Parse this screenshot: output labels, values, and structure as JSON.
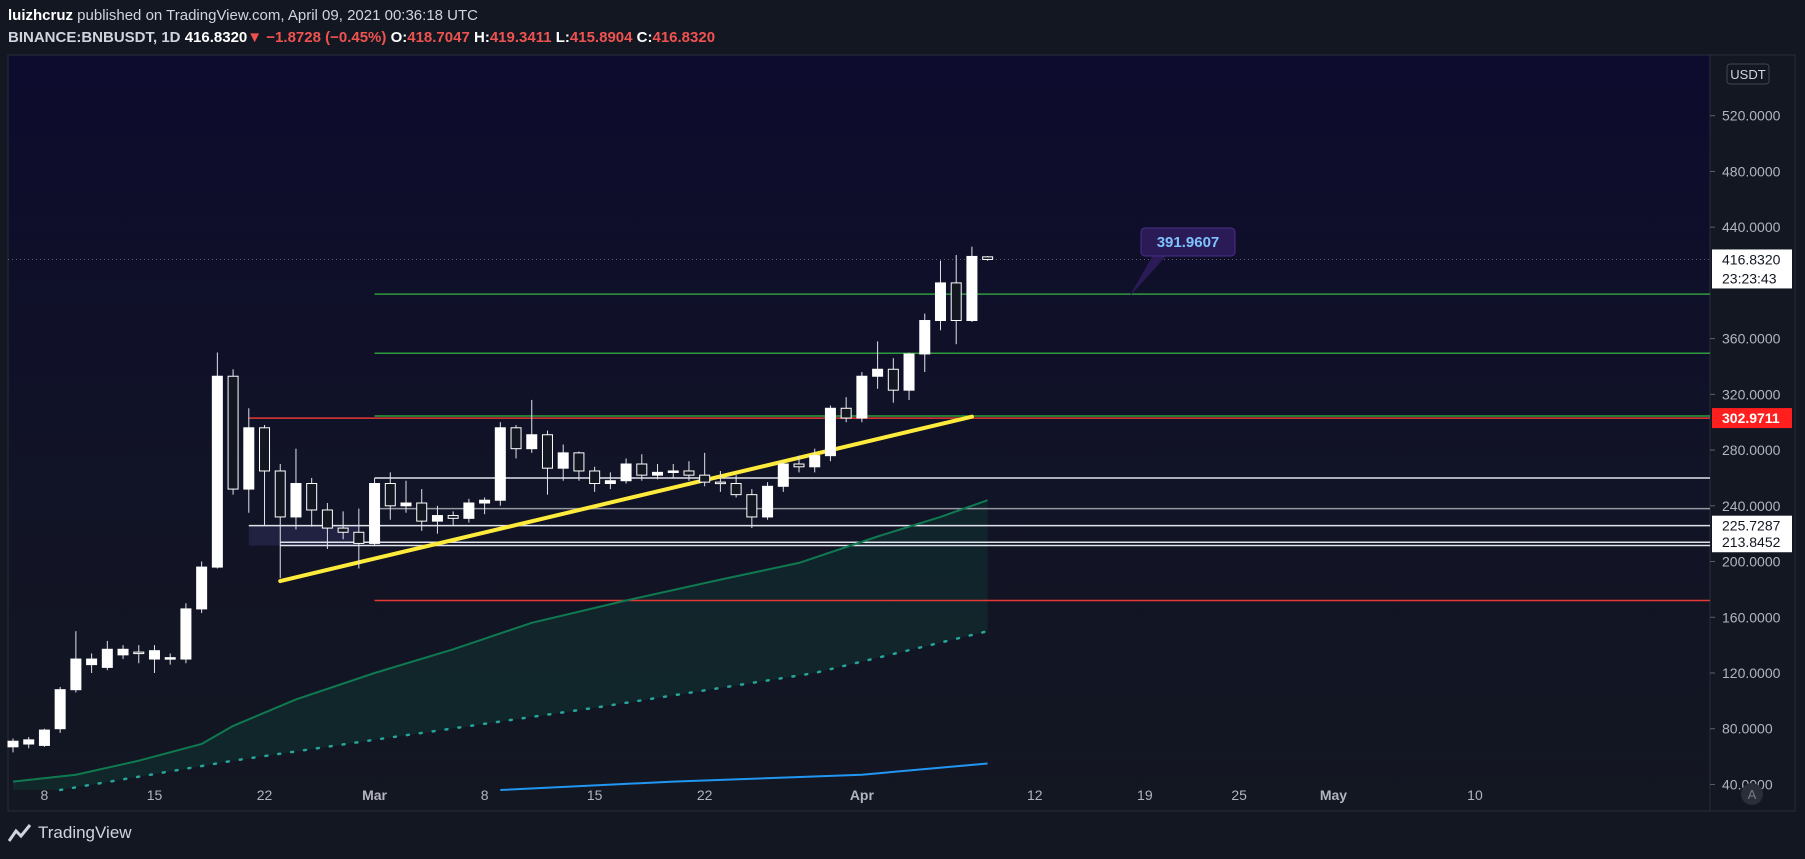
{
  "header": {
    "author": "luizhcruz",
    "published_text": " published on TradingView.com, April 09, 2021 00:36:18 UTC",
    "symbol": "BINANCE:BNBUSDT, 1D",
    "last": "416.8320",
    "arrow": "▼",
    "change": "−1.8728 (−0.45%)",
    "o_label": "O:",
    "o": "418.7047",
    "h_label": "H:",
    "h": "419.3411",
    "l_label": "L:",
    "l": "415.8904",
    "c_label": "C:",
    "c": "416.8320"
  },
  "footer": {
    "brand": "TradingView"
  },
  "colors": {
    "background": "#131722",
    "pane_top": "#0d0b2e",
    "candle": "#ffffff",
    "trendline": "#ffeb3b",
    "ema_green": "#0f7a50",
    "sma_blue": "#2196f3",
    "dot_green": "#26a69a",
    "level_green": "#2e9c3d",
    "level_red": "#e53935",
    "level_white": "#e0e3eb"
  },
  "chart_data": {
    "type": "candlestick",
    "symbol": "BINANCE:BNBUSDT",
    "timeframe": "1D",
    "currency": "USDT",
    "ylim": [
      36,
      560
    ],
    "y_ticks": [
      "520.0000",
      "480.0000",
      "440.0000",
      "360.0000",
      "320.0000",
      "280.0000",
      "240.0000",
      "200.0000",
      "160.0000",
      "120.0000",
      "80.0000",
      "40.0000"
    ],
    "y_tick_values": [
      520,
      480,
      440,
      360,
      320,
      280,
      240,
      200,
      160,
      120,
      80,
      40
    ],
    "x_ticks": [
      {
        "label": "8",
        "date": "2021-02-08"
      },
      {
        "label": "15",
        "date": "2021-02-15"
      },
      {
        "label": "22",
        "date": "2021-02-22"
      },
      {
        "label": "Mar",
        "date": "2021-03-01"
      },
      {
        "label": "8",
        "date": "2021-03-08"
      },
      {
        "label": "15",
        "date": "2021-03-15"
      },
      {
        "label": "22",
        "date": "2021-03-22"
      },
      {
        "label": "Apr",
        "date": "2021-04-01"
      },
      {
        "label": "12",
        "date": "2021-04-12"
      },
      {
        "label": "19",
        "date": "2021-04-19"
      },
      {
        "label": "25",
        "date": "2021-04-25"
      },
      {
        "label": "May",
        "date": "2021-05-01"
      },
      {
        "label": "10",
        "date": "2021-05-10"
      }
    ],
    "candles": [
      {
        "date": "2021-02-06",
        "o": 67,
        "h": 73,
        "l": 63,
        "c": 71
      },
      {
        "date": "2021-02-07",
        "o": 69,
        "h": 74,
        "l": 66,
        "c": 72
      },
      {
        "date": "2021-02-08",
        "o": 68,
        "h": 80,
        "l": 67,
        "c": 79
      },
      {
        "date": "2021-02-09",
        "o": 80,
        "h": 110,
        "l": 77,
        "c": 108
      },
      {
        "date": "2021-02-10",
        "o": 108,
        "h": 150,
        "l": 106,
        "c": 130
      },
      {
        "date": "2021-02-11",
        "o": 126,
        "h": 134,
        "l": 120,
        "c": 130
      },
      {
        "date": "2021-02-12",
        "o": 124,
        "h": 143,
        "l": 122,
        "c": 137
      },
      {
        "date": "2021-02-13",
        "o": 133,
        "h": 140,
        "l": 130,
        "c": 137
      },
      {
        "date": "2021-02-14",
        "o": 135,
        "h": 140,
        "l": 127,
        "c": 134
      },
      {
        "date": "2021-02-15",
        "o": 130,
        "h": 140,
        "l": 120,
        "c": 136
      },
      {
        "date": "2021-02-16",
        "o": 130,
        "h": 134,
        "l": 126,
        "c": 131
      },
      {
        "date": "2021-02-17",
        "o": 130,
        "h": 170,
        "l": 127,
        "c": 166
      },
      {
        "date": "2021-02-18",
        "o": 166,
        "h": 200,
        "l": 163,
        "c": 196
      },
      {
        "date": "2021-02-19",
        "o": 196,
        "h": 350,
        "l": 195,
        "c": 333
      },
      {
        "date": "2021-02-20",
        "o": 333,
        "h": 338,
        "l": 248,
        "c": 252
      },
      {
        "date": "2021-02-21",
        "o": 252,
        "h": 310,
        "l": 235,
        "c": 296
      },
      {
        "date": "2021-02-22",
        "o": 296,
        "h": 298,
        "l": 226,
        "c": 265
      },
      {
        "date": "2021-02-23",
        "o": 265,
        "h": 270,
        "l": 188,
        "c": 232
      },
      {
        "date": "2021-02-24",
        "o": 232,
        "h": 281,
        "l": 223,
        "c": 256
      },
      {
        "date": "2021-02-25",
        "o": 256,
        "h": 260,
        "l": 225,
        "c": 237
      },
      {
        "date": "2021-02-26",
        "o": 237,
        "h": 242,
        "l": 209,
        "c": 224
      },
      {
        "date": "2021-02-27",
        "o": 224,
        "h": 236,
        "l": 216,
        "c": 221
      },
      {
        "date": "2021-02-28",
        "o": 221,
        "h": 238,
        "l": 195,
        "c": 213
      },
      {
        "date": "2021-03-01",
        "o": 213,
        "h": 260,
        "l": 211,
        "c": 256
      },
      {
        "date": "2021-03-02",
        "o": 256,
        "h": 264,
        "l": 230,
        "c": 240
      },
      {
        "date": "2021-03-03",
        "o": 240,
        "h": 258,
        "l": 235,
        "c": 242
      },
      {
        "date": "2021-03-04",
        "o": 242,
        "h": 252,
        "l": 222,
        "c": 229
      },
      {
        "date": "2021-03-05",
        "o": 229,
        "h": 240,
        "l": 220,
        "c": 233
      },
      {
        "date": "2021-03-06",
        "o": 233,
        "h": 236,
        "l": 226,
        "c": 231
      },
      {
        "date": "2021-03-07",
        "o": 231,
        "h": 245,
        "l": 228,
        "c": 242
      },
      {
        "date": "2021-03-08",
        "o": 242,
        "h": 246,
        "l": 234,
        "c": 244
      },
      {
        "date": "2021-03-09",
        "o": 244,
        "h": 300,
        "l": 240,
        "c": 296
      },
      {
        "date": "2021-03-10",
        "o": 296,
        "h": 298,
        "l": 274,
        "c": 281
      },
      {
        "date": "2021-03-11",
        "o": 281,
        "h": 316,
        "l": 278,
        "c": 291
      },
      {
        "date": "2021-03-12",
        "o": 291,
        "h": 294,
        "l": 248,
        "c": 267
      },
      {
        "date": "2021-03-13",
        "o": 267,
        "h": 284,
        "l": 258,
        "c": 278
      },
      {
        "date": "2021-03-14",
        "o": 278,
        "h": 279,
        "l": 258,
        "c": 265
      },
      {
        "date": "2021-03-15",
        "o": 265,
        "h": 268,
        "l": 250,
        "c": 256
      },
      {
        "date": "2021-03-16",
        "o": 256,
        "h": 264,
        "l": 252,
        "c": 258
      },
      {
        "date": "2021-03-17",
        "o": 258,
        "h": 274,
        "l": 256,
        "c": 270
      },
      {
        "date": "2021-03-18",
        "o": 270,
        "h": 277,
        "l": 258,
        "c": 262
      },
      {
        "date": "2021-03-19",
        "o": 262,
        "h": 270,
        "l": 259,
        "c": 264
      },
      {
        "date": "2021-03-20",
        "o": 264,
        "h": 270,
        "l": 260,
        "c": 265
      },
      {
        "date": "2021-03-21",
        "o": 265,
        "h": 272,
        "l": 258,
        "c": 262
      },
      {
        "date": "2021-03-22",
        "o": 262,
        "h": 278,
        "l": 254,
        "c": 257
      },
      {
        "date": "2021-03-23",
        "o": 257,
        "h": 265,
        "l": 250,
        "c": 256
      },
      {
        "date": "2021-03-24",
        "o": 256,
        "h": 262,
        "l": 246,
        "c": 248
      },
      {
        "date": "2021-03-25",
        "o": 248,
        "h": 252,
        "l": 224,
        "c": 232
      },
      {
        "date": "2021-03-26",
        "o": 232,
        "h": 257,
        "l": 230,
        "c": 254
      },
      {
        "date": "2021-03-27",
        "o": 254,
        "h": 272,
        "l": 250,
        "c": 270
      },
      {
        "date": "2021-03-28",
        "o": 270,
        "h": 276,
        "l": 264,
        "c": 268
      },
      {
        "date": "2021-03-29",
        "o": 268,
        "h": 281,
        "l": 264,
        "c": 276
      },
      {
        "date": "2021-03-30",
        "o": 276,
        "h": 312,
        "l": 272,
        "c": 310
      },
      {
        "date": "2021-03-31",
        "o": 310,
        "h": 318,
        "l": 300,
        "c": 303
      },
      {
        "date": "2021-04-01",
        "o": 303,
        "h": 336,
        "l": 300,
        "c": 333
      },
      {
        "date": "2021-04-02",
        "o": 333,
        "h": 358,
        "l": 324,
        "c": 338
      },
      {
        "date": "2021-04-03",
        "o": 338,
        "h": 346,
        "l": 314,
        "c": 323
      },
      {
        "date": "2021-04-04",
        "o": 323,
        "h": 350,
        "l": 316,
        "c": 349
      },
      {
        "date": "2021-04-05",
        "o": 349,
        "h": 378,
        "l": 336,
        "c": 373
      },
      {
        "date": "2021-04-06",
        "o": 373,
        "h": 416,
        "l": 366,
        "c": 400
      },
      {
        "date": "2021-04-07",
        "o": 400,
        "h": 420,
        "l": 356,
        "c": 373
      },
      {
        "date": "2021-04-08",
        "o": 373,
        "h": 426,
        "l": 372,
        "c": 419
      },
      {
        "date": "2021-04-09",
        "o": 418.7047,
        "h": 419.3411,
        "l": 415.8904,
        "c": 416.832
      }
    ],
    "moving_averages": [
      {
        "style": "solid",
        "color": "#0f7a50",
        "points": [
          [
            "2021-02-06",
            42
          ],
          [
            "2021-02-10",
            47
          ],
          [
            "2021-02-14",
            57
          ],
          [
            "2021-02-18",
            69
          ],
          [
            "2021-02-20",
            82
          ],
          [
            "2021-02-24",
            101
          ],
          [
            "2021-03-01",
            120
          ],
          [
            "2021-03-06",
            137
          ],
          [
            "2021-03-11",
            156
          ],
          [
            "2021-03-17",
            172
          ],
          [
            "2021-03-23",
            187
          ],
          [
            "2021-03-28",
            199
          ],
          [
            "2021-04-02",
            218
          ],
          [
            "2021-04-06",
            232
          ],
          [
            "2021-04-09",
            244
          ]
        ]
      },
      {
        "style": "dotted",
        "color": "#26a69a",
        "points": [
          [
            "2021-02-09",
            36
          ],
          [
            "2021-02-20",
            57
          ],
          [
            "2021-03-01",
            72
          ],
          [
            "2021-03-15",
            95
          ],
          [
            "2021-03-29",
            120
          ],
          [
            "2021-04-09",
            150
          ]
        ]
      },
      {
        "style": "solid",
        "color": "#2196f3",
        "points": [
          [
            "2021-03-09",
            36
          ],
          [
            "2021-03-20",
            42
          ],
          [
            "2021-04-01",
            47
          ],
          [
            "2021-04-09",
            55
          ]
        ]
      }
    ],
    "trendline": {
      "from": [
        "2021-02-23",
        186
      ],
      "to": [
        "2021-04-08",
        304
      ]
    },
    "levels": [
      {
        "value": 391.9607,
        "from": "2021-03-01",
        "color": "#2e9c3d"
      },
      {
        "value": 349.5,
        "from": "2021-03-01",
        "color": "#2e9c3d"
      },
      {
        "value": 304.5,
        "from": "2021-03-01",
        "color": "#2e9c3d"
      },
      {
        "value": 302.9711,
        "from": "2021-02-21",
        "color": "#e53935"
      },
      {
        "value": 260,
        "from": "2021-03-01",
        "color": "#e0e3eb"
      },
      {
        "value": 238,
        "from": "2021-03-01",
        "color": "#9598a1"
      },
      {
        "value": 225.7287,
        "from": "2021-02-21",
        "color": "#e0e3eb"
      },
      {
        "value": 213.8452,
        "from": "2021-02-23",
        "color": "#e0e3eb"
      },
      {
        "value": 211.5,
        "from": "2021-02-23",
        "color": "#e0e3eb"
      },
      {
        "value": 172,
        "from": "2021-03-01",
        "color": "#e53935"
      }
    ],
    "price_labels": [
      {
        "text": "416.8320",
        "value": 416.832,
        "kind": "last"
      },
      {
        "text": "23:23:43",
        "value": 416.832,
        "kind": "countdown"
      },
      {
        "text": "302.9711",
        "value": 302.9711,
        "kind": "red"
      },
      {
        "text": "225.7287",
        "value": 225.7287,
        "kind": "white"
      },
      {
        "text": "213.8452",
        "value": 213.8452,
        "kind": "white"
      }
    ],
    "annotation": {
      "text": "391.9607",
      "value": 391.9607
    },
    "currency_badge": "USDT",
    "corner_badge": "A"
  }
}
